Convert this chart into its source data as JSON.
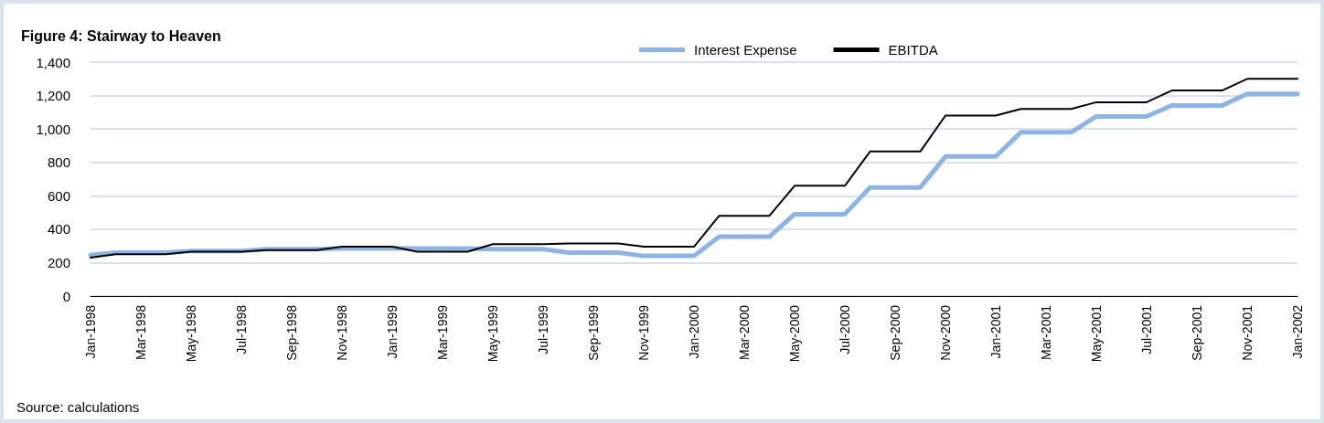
{
  "chart_data": {
    "type": "line",
    "title": "Figure 4: Stairway to Heaven",
    "annotations": [
      "Source: calculations"
    ],
    "categories": [
      "Jan-1998",
      null,
      "Mar-1998",
      null,
      "May-1998",
      null,
      "Jul-1998",
      null,
      "Sep-1998",
      null,
      "Nov-1998",
      null,
      "Jan-1999",
      null,
      "Mar-1999",
      null,
      "May-1999",
      null,
      "Jul-1999",
      null,
      "Sep-1999",
      null,
      "Nov-1999",
      null,
      "Jan-2000",
      null,
      "Mar-2000",
      null,
      "May-2000",
      null,
      "Jul-2000",
      null,
      "Sep-2000",
      null,
      "Nov-2000",
      null,
      "Jan-2001",
      null,
      "Mar-2001",
      null,
      "May-2001",
      null,
      "Jul-2001",
      null,
      "Sep-2001",
      null,
      "Nov-2001",
      null,
      "Jan-2002"
    ],
    "series": [
      {
        "name": "Interest Expense",
        "color": "#8eb4e3",
        "values": [
          245,
          260,
          260,
          260,
          270,
          270,
          270,
          280,
          280,
          280,
          285,
          285,
          285,
          285,
          285,
          285,
          280,
          280,
          280,
          260,
          260,
          260,
          240,
          240,
          240,
          355,
          355,
          355,
          490,
          490,
          490,
          650,
          650,
          650,
          835,
          835,
          835,
          980,
          980,
          980,
          1075,
          1075,
          1075,
          1140,
          1140,
          1140,
          1210,
          1210,
          1210
        ]
      },
      {
        "name": "EBITDA",
        "color": "#000000",
        "values": [
          230,
          250,
          250,
          250,
          265,
          265,
          265,
          275,
          275,
          275,
          295,
          295,
          295,
          265,
          265,
          265,
          310,
          310,
          310,
          315,
          315,
          315,
          295,
          295,
          295,
          480,
          480,
          480,
          660,
          660,
          660,
          865,
          865,
          865,
          1080,
          1080,
          1080,
          1120,
          1120,
          1120,
          1160,
          1160,
          1160,
          1230,
          1230,
          1230,
          1300,
          1300,
          1300
        ]
      }
    ],
    "ylim": [
      0,
      1400
    ],
    "yticks": [
      0,
      200,
      400,
      600,
      800,
      {
        "value": 1000,
        "label": "1,000"
      },
      {
        "value": 1200,
        "label": "1,200"
      },
      {
        "value": 1400,
        "label": "1,400"
      }
    ],
    "grid": "y",
    "legend": "top",
    "marker": "none",
    "line_style": "solid"
  }
}
